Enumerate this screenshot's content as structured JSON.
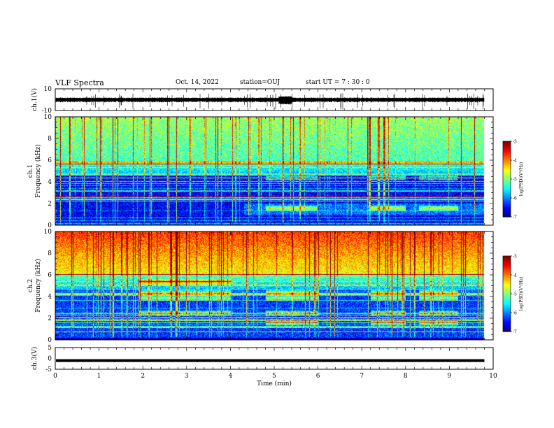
{
  "header": {
    "title": "VLF Spectra",
    "date": "Oct. 14, 2022",
    "station": "station=OUJ",
    "start_ut": "start  UT =   7 : 30 : 0"
  },
  "chart_data": [
    {
      "type": "line",
      "panel": "ch1-waveform",
      "ylabel": "ch.1(V)",
      "ylim": [
        -10,
        10
      ],
      "yticks": [
        "10",
        "-10"
      ],
      "xlim": [
        0,
        10
      ],
      "color": "#000000"
    },
    {
      "type": "heatmap",
      "panel": "ch1-spectrogram",
      "ylabel": "ch.1 Frequency (kHz)",
      "ylim": [
        0,
        10
      ],
      "yticks": [
        "0",
        "2",
        "4",
        "6",
        "8",
        "10"
      ],
      "xlim": [
        0,
        10
      ],
      "data_end_min": 9.8,
      "colorbar": {
        "label": "log(PSD)(V²/Hz)",
        "range": [
          -7,
          -3
        ],
        "ticks": [
          "-3",
          "-4",
          "-5",
          "-6",
          "-7"
        ]
      },
      "emission_bands_khz": [
        1.6,
        4.4
      ],
      "emission_intervals_min": [
        [
          4.8,
          6.0
        ],
        [
          7.2,
          8.0
        ],
        [
          8.3,
          9.2
        ]
      ]
    },
    {
      "type": "heatmap",
      "panel": "ch2-spectrogram",
      "ylabel": "ch.2 Frequency (kHz)",
      "ylim": [
        0,
        10
      ],
      "yticks": [
        "0",
        "2",
        "4",
        "6",
        "8",
        "10"
      ],
      "xlim": [
        0,
        10
      ],
      "data_end_min": 9.8,
      "colorbar": {
        "label": "log(PSD)(V²/Hz)",
        "range": [
          -7,
          -3
        ],
        "ticks": [
          "-3",
          "-4",
          "-5",
          "-6",
          "-7"
        ]
      },
      "emission_bands_khz": [
        1.6,
        2.5,
        3.9,
        4.4,
        5.4
      ],
      "emission_intervals_min": [
        [
          1.9,
          4.0
        ],
        [
          4.8,
          6.0
        ],
        [
          7.2,
          8.0
        ],
        [
          8.3,
          9.2
        ]
      ]
    },
    {
      "type": "line",
      "panel": "ch3-waveform",
      "ylabel": "ch.3(V)",
      "ylim": [
        -5,
        5
      ],
      "yticks": [
        "5",
        "0",
        "-5"
      ],
      "xlim": [
        0,
        10
      ],
      "value": -1,
      "color": "#000000"
    }
  ],
  "xaxis": {
    "label": "Time  (min)",
    "ticks": [
      "0",
      "1",
      "2",
      "3",
      "4",
      "5",
      "6",
      "7",
      "8",
      "9",
      "10"
    ]
  },
  "colors": {
    "frame": "#000000",
    "background": "#ffffff"
  }
}
